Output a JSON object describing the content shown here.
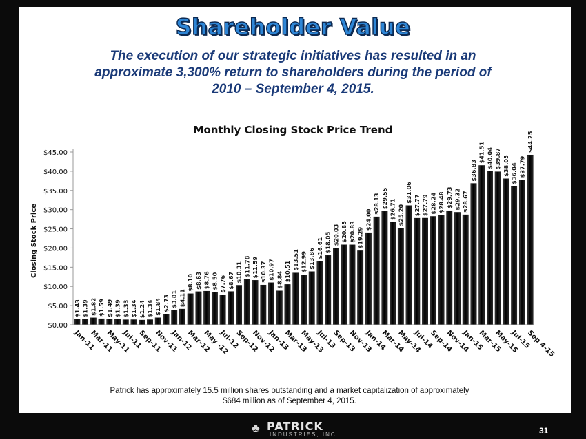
{
  "slide": {
    "title": "Shareholder Value",
    "subtitle_line1": "The execution of our strategic initiatives has resulted in an",
    "subtitle_line2": "approximate 3,300% return to shareholders during the period of",
    "subtitle_line3": "2010 – September 4, 2015.",
    "footnote_line1": "Patrick has approximately 15.5 million shares outstanding and a market capitalization of approximately",
    "footnote_line2": "$684 million as of September 4, 2015.",
    "logo_name": "PATRICK",
    "logo_tagline": "INDUSTRIES, INC.",
    "page_number": "31"
  },
  "chart_data": {
    "type": "bar",
    "title": "Monthly Closing Stock Price Trend",
    "ylabel": "Closing Stock Price",
    "xlabel": "",
    "ylim": [
      0,
      45
    ],
    "yticks": [
      "$0.00",
      "$5.00",
      "$10.00",
      "$15.00",
      "$20.00",
      "$25.00",
      "$30.00",
      "$35.00",
      "$40.00",
      "$45.00"
    ],
    "xticks": [
      "Jan-11",
      "Mar-11",
      "May-11",
      "Jul-11",
      "Sep-11",
      "Nov-11",
      "Jan-12",
      "Mar-12",
      "May -12",
      "Jul-12",
      "Sep-12",
      "Nov-12",
      "Jan-13",
      "Mar-13",
      "May-13",
      "Jul-13",
      "Sep-13",
      "Nov-13",
      "Jan-14",
      "Mar-14",
      "May-14",
      "Jul-14",
      "Sep-14",
      "Nov-14",
      "Jan-15",
      "Mar-15",
      "May-15",
      "Jul-15",
      "Sep 4-15"
    ],
    "values": [
      1.43,
      1.39,
      1.82,
      1.59,
      1.49,
      1.39,
      1.33,
      1.34,
      1.24,
      1.34,
      1.84,
      2.73,
      3.81,
      4.11,
      8.1,
      8.63,
      8.76,
      8.5,
      7.76,
      8.67,
      10.31,
      11.78,
      11.59,
      10.37,
      10.97,
      8.84,
      10.51,
      13.51,
      12.99,
      13.86,
      16.61,
      18.05,
      20.03,
      20.85,
      20.83,
      19.29,
      24.0,
      28.13,
      29.55,
      26.71,
      25.2,
      31.06,
      27.77,
      27.79,
      28.24,
      28.48,
      29.73,
      29.32,
      28.67,
      36.83,
      41.51,
      40.04,
      39.87,
      38.05,
      36.04,
      37.79,
      44.25
    ],
    "labels": [
      "$1.43",
      "$1.39",
      "$1.82",
      "$1.59",
      "$1.49",
      "$1.39",
      "$1.33",
      "$1.34",
      "$1.24",
      "$1.34",
      "$1.84",
      "$2.73",
      "$3.81",
      "$4.11",
      "$8.10",
      "$8.63",
      "$8.76",
      "$8.50",
      "$7.76",
      "$8.67",
      "$10.31",
      "$11.78",
      "$11.59",
      "$10.37",
      "$10.97",
      "$8.84",
      "$10.51",
      "$13.51",
      "$12.99",
      "$13.86",
      "$16.61",
      "$18.05",
      "$20.03",
      "$20.85",
      "$20.83",
      "$19.29",
      "$24.00",
      "$28.13",
      "$29.55",
      "$26.71",
      "$25.20",
      "$31.06",
      "$27.77",
      "$27.79",
      "$28.24",
      "$28.48",
      "$29.73",
      "$29.32",
      "$28.67",
      "$36.83",
      "$41.51",
      "$40.04",
      "$39.87",
      "$38.05",
      "$36.04",
      "$37.79",
      "$44.25"
    ],
    "grid": false,
    "legend": "none",
    "bar_color": "#0d0d0d"
  }
}
